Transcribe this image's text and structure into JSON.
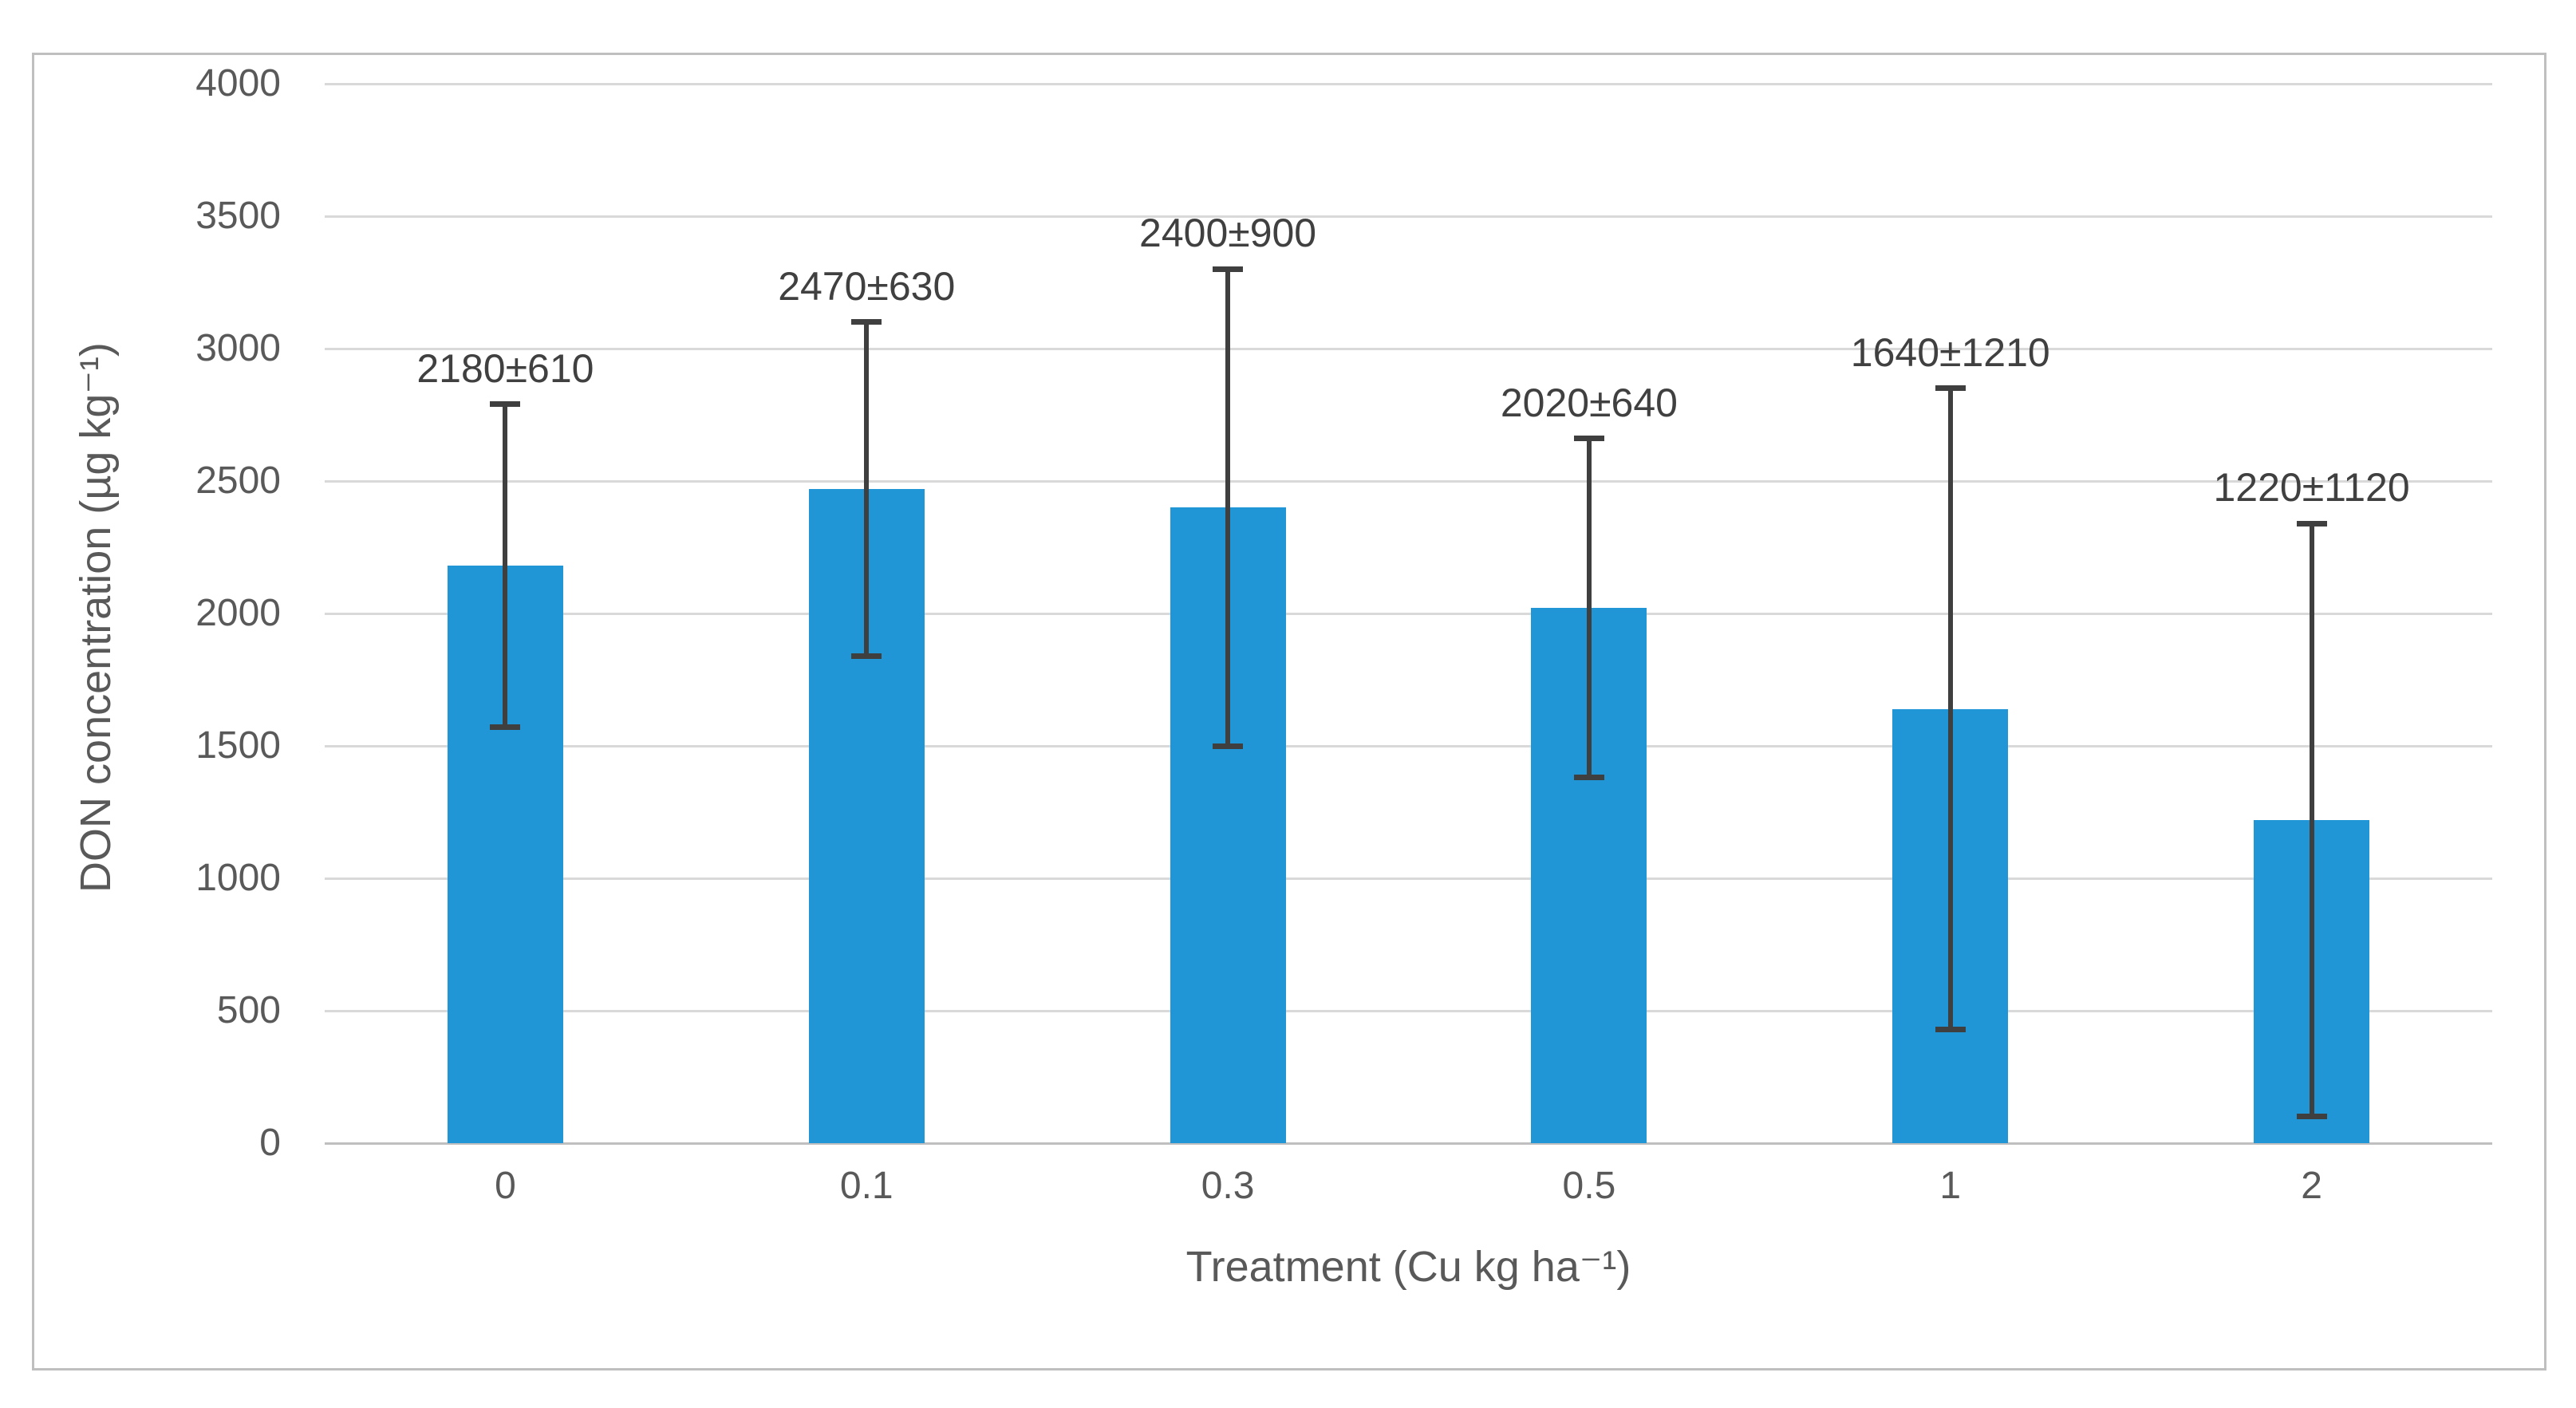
{
  "chart_data": {
    "type": "bar",
    "title": "",
    "categories": [
      "0",
      "0.1",
      "0.3",
      "0.5",
      "1",
      "2"
    ],
    "values": [
      2180,
      2470,
      2400,
      2020,
      1640,
      1220
    ],
    "errors": [
      610,
      630,
      900,
      640,
      1210,
      1120
    ],
    "data_labels": [
      "2180±610",
      "2470±630",
      "2400±900",
      "2020±640",
      "1640±1210",
      "1220±1120"
    ],
    "xlabel": "Treatment (Cu kg ha⁻¹)",
    "ylabel": "DON concentration (µg kg⁻¹)",
    "ylim": [
      0,
      4000
    ],
    "ytick_step": 500,
    "yticks": [
      "0",
      "500",
      "1000",
      "1500",
      "2000",
      "2500",
      "3000",
      "3500",
      "4000"
    ],
    "grid": true,
    "legend_position": "none",
    "bar_color": "#2096D6",
    "error_bar_color": "#3F3F3F",
    "gridline_color": "#D9D9D9",
    "axis_line_color": "#BFBFBF",
    "tick_text_color": "#595959",
    "label_text_color": "#404040"
  }
}
